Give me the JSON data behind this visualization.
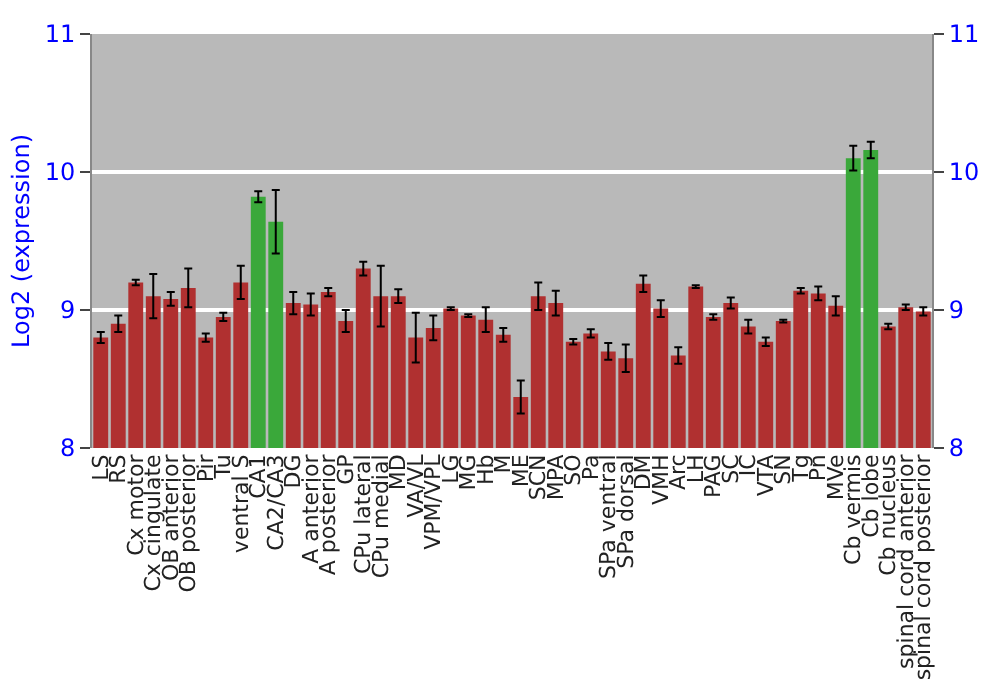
{
  "chart_data": {
    "type": "bar",
    "ylabel": "Log2 (expression)",
    "categories": [
      "LS",
      "RS",
      "Cx motor",
      "Cx cingulate",
      "OB anterior",
      "OB posterior",
      "Pir",
      "Tu",
      "ventral S",
      "CA1",
      "CA2/CA3",
      "DG",
      "A anterior",
      "A posterior",
      "GP",
      "CPu lateral",
      "CPu medial",
      "MD",
      "VA/VL",
      "VPM/VPL",
      "LG",
      "MG",
      "Hb",
      "M",
      "ME",
      "SCN",
      "MPA",
      "SO",
      "Pa",
      "SPa ventral",
      "SPa dorsal",
      "DM",
      "VMH",
      "Arc",
      "LH",
      "PAG",
      "SC",
      "IC",
      "VTA",
      "SN",
      "Tg",
      "Pn",
      "MVe",
      "Cb vermis",
      "Cb lobe",
      "Cb nucleus",
      "spinal cord anterior",
      "spinal cord posterior"
    ],
    "values": [
      8.8,
      8.9,
      9.2,
      9.1,
      9.08,
      9.16,
      8.8,
      8.95,
      9.2,
      9.82,
      9.64,
      9.05,
      9.04,
      9.13,
      8.92,
      9.3,
      9.1,
      9.1,
      8.8,
      8.87,
      9.01,
      8.96,
      8.93,
      8.82,
      8.37,
      9.1,
      9.05,
      8.77,
      8.83,
      8.7,
      8.65,
      9.19,
      9.01,
      8.67,
      9.17,
      8.95,
      9.05,
      8.88,
      8.77,
      8.92,
      9.14,
      9.12,
      9.03,
      10.1,
      10.16,
      8.88,
      9.02,
      8.99
    ],
    "errors": [
      0.04,
      0.06,
      0.02,
      0.16,
      0.05,
      0.14,
      0.03,
      0.03,
      0.12,
      0.04,
      0.23,
      0.08,
      0.08,
      0.03,
      0.08,
      0.05,
      0.22,
      0.05,
      0.18,
      0.09,
      0.01,
      0.01,
      0.09,
      0.05,
      0.12,
      0.1,
      0.09,
      0.02,
      0.03,
      0.06,
      0.1,
      0.06,
      0.06,
      0.06,
      0.01,
      0.02,
      0.04,
      0.05,
      0.03,
      0.01,
      0.02,
      0.05,
      0.07,
      0.09,
      0.06,
      0.02,
      0.02,
      0.03
    ],
    "colors": [
      "#b03030",
      "#b03030",
      "#b03030",
      "#b03030",
      "#b03030",
      "#b03030",
      "#b03030",
      "#b03030",
      "#b03030",
      "#3aa83a",
      "#3aa83a",
      "#b03030",
      "#b03030",
      "#b03030",
      "#b03030",
      "#b03030",
      "#b03030",
      "#b03030",
      "#b03030",
      "#b03030",
      "#b03030",
      "#b03030",
      "#b03030",
      "#b03030",
      "#b03030",
      "#b03030",
      "#b03030",
      "#b03030",
      "#b03030",
      "#b03030",
      "#b03030",
      "#b03030",
      "#b03030",
      "#b03030",
      "#b03030",
      "#b03030",
      "#b03030",
      "#b03030",
      "#b03030",
      "#b03030",
      "#b03030",
      "#b03030",
      "#b03030",
      "#3aa83a",
      "#3aa83a",
      "#b03030",
      "#b03030",
      "#b03030"
    ],
    "ylim": [
      8,
      11
    ],
    "yticks": [
      8,
      9,
      10,
      11
    ],
    "y2lim": [
      8,
      11
    ],
    "y2ticks": [
      8,
      9,
      10,
      11
    ],
    "grid": "y"
  }
}
